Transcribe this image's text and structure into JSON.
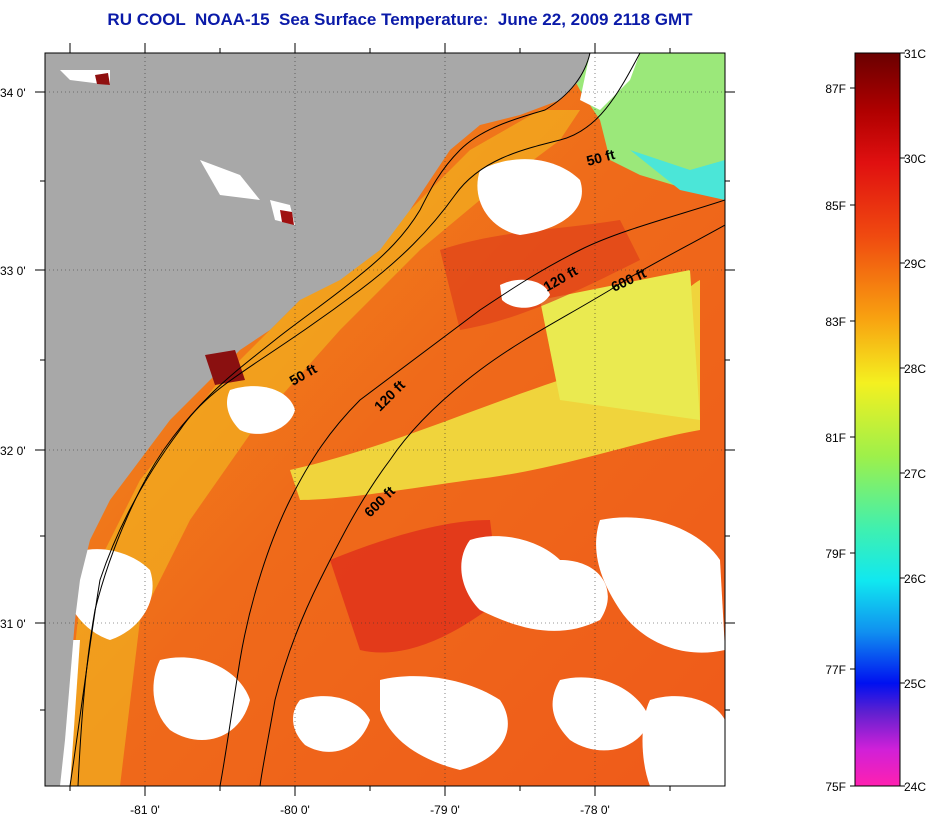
{
  "title": "RU COOL  NOAA-15  Sea Surface Temperature:  June 22, 2009 2118 GMT",
  "map": {
    "lat_labels": [
      "34 0'",
      "33 0'",
      "32 0'",
      "31 0'"
    ],
    "lon_labels": [
      "-81 0'",
      "-80 0'",
      "-79 0'",
      "-78 0'"
    ],
    "contours": [
      {
        "label": "50 ft"
      },
      {
        "label": "50 ft"
      },
      {
        "label": "120 ft"
      },
      {
        "label": "120 ft"
      },
      {
        "label": "600 ft"
      },
      {
        "label": "600 ft"
      }
    ],
    "colors": {
      "land": "#a8a8a8",
      "cloud": "#ffffff",
      "warm": "#ef5a1a",
      "hot": "#d81a10",
      "mid": "#f29a1a",
      "cool": "#e8e84a",
      "green": "#7fe89a",
      "cyan": "#4be6d8"
    }
  },
  "colorbar": {
    "celsius_labels": [
      "31C",
      "30C",
      "29C",
      "28C",
      "27C",
      "26C",
      "25C",
      "24C"
    ],
    "fahrenheit_labels": [
      "87F",
      "85F",
      "83F",
      "81F",
      "79F",
      "77F",
      "75F"
    ]
  }
}
